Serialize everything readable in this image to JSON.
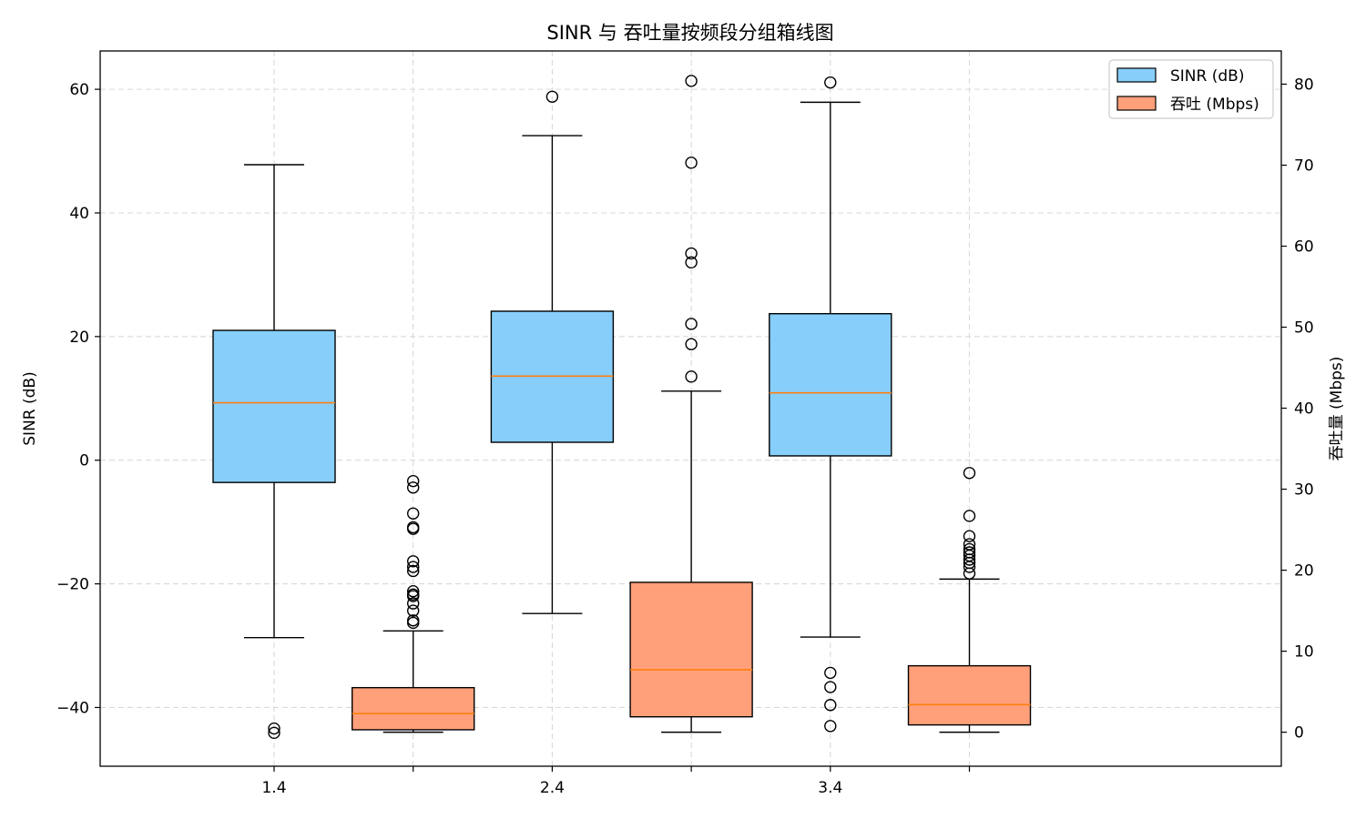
{
  "chart_data": {
    "type": "box",
    "title": "SINR 与 吞吐量按频段分组箱线图",
    "xlabel": "",
    "ylabel": "SINR (dB)",
    "ylabel_right": "吞吐量 (Mbps)",
    "x_ticks": [
      "1.4",
      "",
      "2.4",
      "",
      "3.4",
      ""
    ],
    "ylim_left": [
      -49.5,
      66.2
    ],
    "ylim_right": [
      -4.2,
      84.1
    ],
    "yticks_left": [
      -40,
      -20,
      0,
      20,
      40,
      60
    ],
    "yticks_left_labels": [
      "−40",
      "−20",
      "0",
      "20",
      "40",
      "60"
    ],
    "yticks_right": [
      0,
      10,
      20,
      30,
      40,
      50,
      60,
      70,
      80
    ],
    "grid": true,
    "legend_position": "top-right",
    "legend": [
      {
        "label": "SINR (dB)",
        "color": "#87cefa"
      },
      {
        "label": "吞吐 (Mbps)",
        "color": "#ffa07a"
      }
    ],
    "median_color": "#ff7f0e",
    "groups": [
      {
        "series": "SINR (dB)",
        "axis": "left",
        "color": "#87cefa",
        "x_slot": 0,
        "whisker_low": -28.7,
        "q1": -3.6,
        "median": 9.3,
        "q3": 21.0,
        "whisker_high": 47.8,
        "outliers": [
          -43.4,
          -44.1
        ]
      },
      {
        "series": "吞吐 (Mbps)",
        "axis": "right",
        "color": "#ffa07a",
        "x_slot": 1,
        "whisker_low": 0.0,
        "q1": 0.3,
        "median": 2.3,
        "q3": 5.5,
        "whisker_high": 12.5,
        "outliers": [
          31.0,
          30.2,
          27.0,
          25.3,
          25.1,
          21.1,
          20.4,
          19.9,
          17.4,
          17.0,
          16.8,
          15.9,
          15.0,
          13.8,
          13.5
        ]
      },
      {
        "series": "SINR (dB)",
        "axis": "left",
        "color": "#87cefa",
        "x_slot": 2,
        "whisker_low": -24.8,
        "q1": 2.9,
        "median": 13.6,
        "q3": 24.1,
        "whisker_high": 52.5,
        "outliers": [
          58.8
        ]
      },
      {
        "series": "吞吐 (Mbps)",
        "axis": "right",
        "color": "#ffa07a",
        "x_slot": 3,
        "whisker_low": 0.0,
        "q1": 1.9,
        "median": 7.7,
        "q3": 18.5,
        "whisker_high": 42.1,
        "outliers": [
          80.4,
          70.3,
          59.1,
          58.0,
          50.4,
          47.9,
          43.9
        ]
      },
      {
        "series": "SINR (dB)",
        "axis": "left",
        "color": "#87cefa",
        "x_slot": 4,
        "whisker_low": -28.6,
        "q1": 0.7,
        "median": 10.9,
        "q3": 23.7,
        "whisker_high": 57.9,
        "outliers": [
          61.1,
          -34.4,
          -36.7,
          -39.6,
          -43.0
        ]
      },
      {
        "series": "吞吐 (Mbps)",
        "axis": "right",
        "color": "#ffa07a",
        "x_slot": 5,
        "whisker_low": 0.0,
        "q1": 0.9,
        "median": 3.4,
        "q3": 8.2,
        "whisker_high": 18.9,
        "outliers": [
          32.0,
          26.7,
          24.2,
          23.2,
          22.6,
          22.2,
          21.8,
          21.3,
          20.9,
          20.4,
          19.6
        ]
      }
    ]
  }
}
